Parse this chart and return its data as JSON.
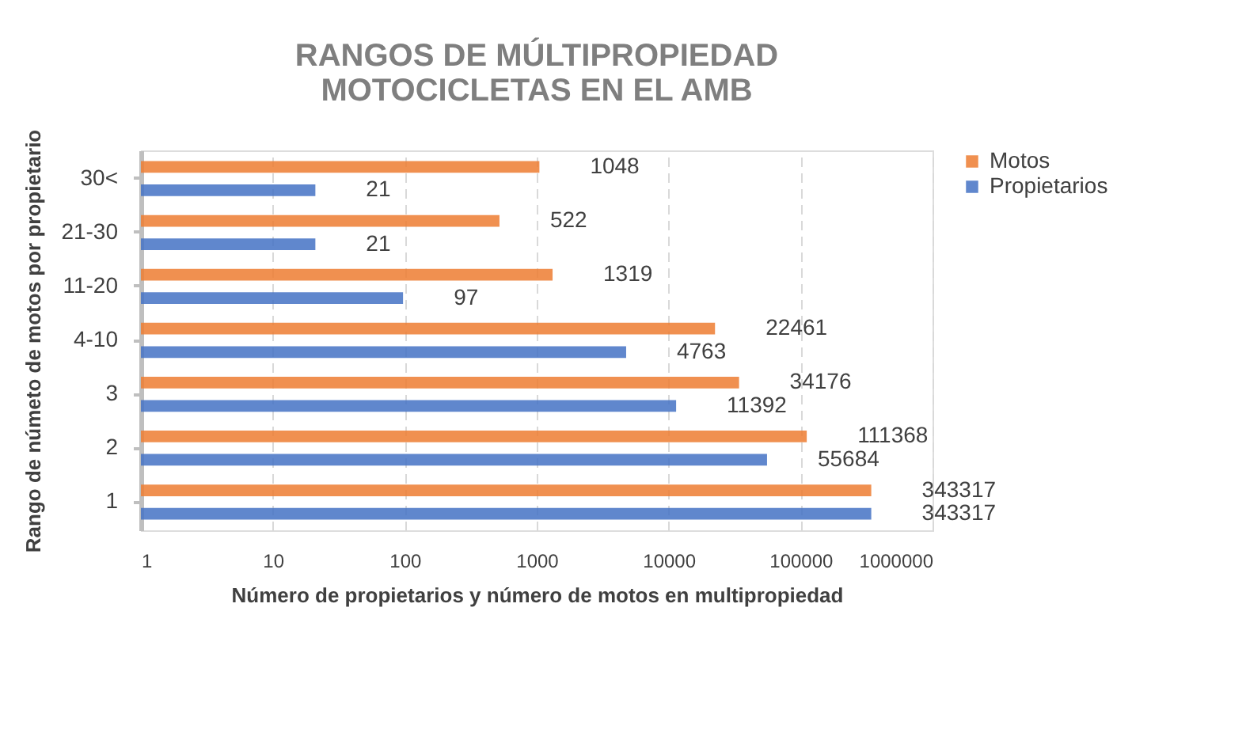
{
  "chart_data": {
    "type": "bar",
    "orientation": "horizontal",
    "title": "RANGOS DE MÚLTIPROPIEDAD\nMOTOCICLETAS EN EL AMB",
    "xlabel": "Número de propietarios y número de motos en multipropiedad",
    "ylabel": "Rango de númeto de motos por propietario",
    "categories": [
      "30<",
      "21-30",
      "11-20",
      "4-10",
      "3",
      "2",
      "1"
    ],
    "series": [
      {
        "name": "Motos",
        "color": "#ed7d31",
        "values": [
          1048,
          522,
          1319,
          22461,
          34176,
          111368,
          343317
        ]
      },
      {
        "name": "Propietarios",
        "color": "#4472c4",
        "values": [
          21,
          21,
          97,
          4763,
          11392,
          55684,
          343317
        ]
      }
    ],
    "log": "x",
    "xlim": [
      1,
      1000000
    ],
    "xticks": [
      1,
      10,
      100,
      1000,
      10000,
      100000,
      1000000
    ],
    "grid": "x",
    "legend": "right",
    "data_labels": true
  }
}
